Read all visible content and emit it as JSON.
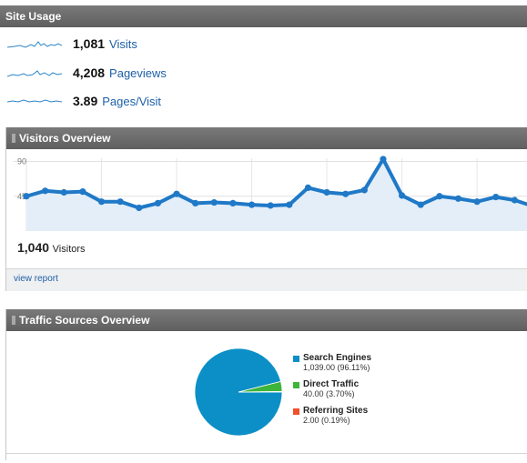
{
  "site_usage": {
    "title": "Site Usage",
    "metrics": [
      {
        "value": "1,081",
        "label": "Visits",
        "icon": "sparkline-icon"
      },
      {
        "value": "4,208",
        "label": "Pageviews",
        "icon": "sparkline-icon"
      },
      {
        "value": "3.89",
        "label": "Pages/Visit",
        "icon": "sparkline-icon"
      }
    ]
  },
  "visitors_overview": {
    "title": "Visitors Overview",
    "total_value": "1,040",
    "total_label": "Visitors",
    "view_report": "view report",
    "chart_data": {
      "type": "line",
      "title": "",
      "xlabel": "",
      "ylabel": "",
      "ylim": [
        0,
        100
      ],
      "yticks": [
        45,
        90
      ],
      "series": [
        {
          "values": [
            45,
            52,
            50,
            51,
            38,
            38,
            30,
            36,
            48,
            36,
            37,
            36,
            34,
            33,
            34,
            56,
            50,
            48,
            53,
            93,
            46,
            34,
            45,
            42,
            38,
            44,
            40,
            32
          ]
        }
      ],
      "colors": {
        "line": "#1f79c7",
        "fill": "#e3eef8",
        "marker": "#1f79c7"
      }
    }
  },
  "traffic_sources": {
    "title": "Traffic Sources Overview",
    "chart_data": {
      "type": "pie",
      "slices": [
        {
          "name": "Search Engines",
          "label": "1,039.00 (96.11%)",
          "value": 96.11,
          "color": "#0b8fc6"
        },
        {
          "name": "Direct Traffic",
          "label": "40.00 (3.70%)",
          "value": 3.7,
          "color": "#3db43a"
        },
        {
          "name": "Referring Sites",
          "label": "2.00 (0.19%)",
          "value": 0.19,
          "color": "#f0502a"
        }
      ]
    }
  }
}
